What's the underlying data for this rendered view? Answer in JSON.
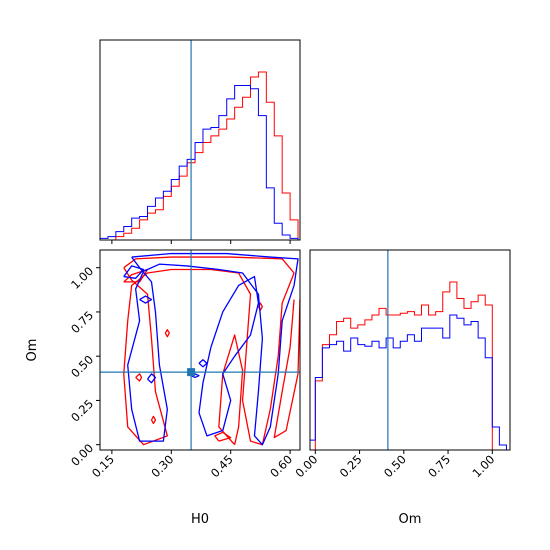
{
  "chart_data": [
    {
      "type": "histogram",
      "panel": "H0 marginal (top-left)",
      "xlim": [
        0.12,
        0.625
      ],
      "truth": 0.35,
      "series": [
        {
          "name": "",
          "color": "#ff0000",
          "edges": [
            0.12,
            0.14,
            0.16,
            0.18,
            0.2,
            0.22,
            0.24,
            0.26,
            0.28,
            0.3,
            0.32,
            0.34,
            0.36,
            0.38,
            0.4,
            0.42,
            0.44,
            0.46,
            0.48,
            0.5,
            0.52,
            0.54,
            0.56,
            0.58,
            0.6,
            0.62
          ],
          "counts": [
            0.0,
            0.0,
            0.02,
            0.04,
            0.07,
            0.12,
            0.16,
            0.18,
            0.26,
            0.32,
            0.38,
            0.46,
            0.52,
            0.58,
            0.62,
            0.66,
            0.72,
            0.79,
            0.85,
            0.97,
            1.0,
            0.82,
            0.62,
            0.28,
            0.12
          ]
        },
        {
          "name": "",
          "color": "#0000ff",
          "edges": [
            0.12,
            0.14,
            0.16,
            0.18,
            0.2,
            0.22,
            0.24,
            0.26,
            0.28,
            0.3,
            0.32,
            0.34,
            0.36,
            0.38,
            0.4,
            0.42,
            0.44,
            0.46,
            0.48,
            0.5,
            0.52,
            0.54,
            0.56,
            0.58,
            0.6,
            0.62
          ],
          "counts": [
            0.01,
            0.02,
            0.05,
            0.08,
            0.13,
            0.14,
            0.2,
            0.25,
            0.29,
            0.36,
            0.44,
            0.48,
            0.58,
            0.66,
            0.67,
            0.74,
            0.84,
            0.92,
            0.92,
            0.9,
            0.74,
            0.31,
            0.1,
            0.03,
            0.01
          ]
        }
      ]
    },
    {
      "type": "histogram",
      "panel": "Om marginal (bottom-right)",
      "xlabel": "Om",
      "xlim": [
        -0.03,
        1.1
      ],
      "xticks": [
        "0.00",
        "0.25",
        "0.50",
        "0.75",
        "1.00"
      ],
      "truth": 0.41,
      "series": [
        {
          "name": "",
          "color": "#ff0000",
          "edges": [
            0.0,
            0.04,
            0.08,
            0.12,
            0.16,
            0.2,
            0.24,
            0.28,
            0.32,
            0.36,
            0.4,
            0.44,
            0.48,
            0.52,
            0.56,
            0.6,
            0.64,
            0.68,
            0.72,
            0.76,
            0.8,
            0.84,
            0.88,
            0.92,
            0.96,
            1.0
          ],
          "counts": [
            0.42,
            0.64,
            0.7,
            0.78,
            0.8,
            0.74,
            0.76,
            0.79,
            0.82,
            0.86,
            0.82,
            0.82,
            0.83,
            0.84,
            0.82,
            0.88,
            0.82,
            0.84,
            0.96,
            1.02,
            0.92,
            0.86,
            0.9,
            0.94,
            0.88
          ]
        },
        {
          "name": "",
          "color": "#0000ff",
          "edges": [
            -0.03,
            0.0,
            0.04,
            0.08,
            0.12,
            0.16,
            0.2,
            0.24,
            0.28,
            0.32,
            0.36,
            0.4,
            0.44,
            0.48,
            0.52,
            0.56,
            0.6,
            0.64,
            0.68,
            0.72,
            0.76,
            0.8,
            0.84,
            0.88,
            0.92,
            0.96,
            1.0,
            1.04,
            1.08,
            1.1
          ],
          "counts": [
            0.06,
            0.44,
            0.62,
            0.64,
            0.66,
            0.6,
            0.68,
            0.64,
            0.63,
            0.66,
            0.62,
            0.68,
            0.62,
            0.66,
            0.7,
            0.66,
            0.74,
            0.74,
            0.74,
            0.68,
            0.82,
            0.8,
            0.76,
            0.78,
            0.68,
            0.56,
            0.14,
            0.03,
            0.0
          ]
        }
      ]
    },
    {
      "type": "contour",
      "panel": "Om vs H0 joint (bottom-left)",
      "xlabel": "H0",
      "ylabel": "Om",
      "xlim": [
        0.12,
        0.625
      ],
      "ylim": [
        -0.03,
        1.1
      ],
      "xticks": [
        "0.15",
        "0.30",
        "0.45",
        "0.60"
      ],
      "yticks": [
        "0.00",
        "0.25",
        "0.50",
        "0.75",
        "1.00"
      ],
      "truth": {
        "x": 0.35,
        "y": 0.41
      },
      "series": [
        {
          "name": "",
          "color": "#ff0000",
          "paths": [
            [
              [
                0.18,
                1.0
              ],
              [
                0.21,
                1.05
              ],
              [
                0.3,
                1.06
              ],
              [
                0.45,
                1.06
              ],
              [
                0.58,
                1.05
              ],
              [
                0.61,
                0.97
              ],
              [
                0.58,
                0.8
              ],
              [
                0.57,
                0.5
              ],
              [
                0.55,
                0.2
              ],
              [
                0.53,
                0.0
              ],
              [
                0.5,
                0.02
              ],
              [
                0.48,
                0.25
              ],
              [
                0.49,
                0.55
              ],
              [
                0.5,
                0.85
              ],
              [
                0.47,
                0.97
              ],
              [
                0.4,
                0.99
              ],
              [
                0.3,
                0.99
              ],
              [
                0.24,
                0.97
              ],
              [
                0.2,
                0.9
              ],
              [
                0.19,
                0.7
              ],
              [
                0.18,
                0.4
              ],
              [
                0.19,
                0.1
              ],
              [
                0.23,
                0.0
              ],
              [
                0.29,
                0.05
              ],
              [
                0.26,
                0.3
              ],
              [
                0.25,
                0.6
              ],
              [
                0.24,
                0.85
              ],
              [
                0.2,
                0.93
              ],
              [
                0.18,
                1.0
              ]
            ],
            [
              [
                0.46,
                0.0
              ],
              [
                0.42,
                0.1
              ],
              [
                0.43,
                0.4
              ],
              [
                0.46,
                0.62
              ],
              [
                0.48,
                0.42
              ],
              [
                0.47,
                0.1
              ],
              [
                0.46,
                0.0
              ]
            ],
            [
              [
                0.61,
                0.82
              ],
              [
                0.6,
                0.55
              ],
              [
                0.58,
                0.3
              ],
              [
                0.56,
                0.04
              ],
              [
                0.59,
                0.08
              ],
              [
                0.62,
                0.4
              ],
              [
                0.625,
                0.82
              ]
            ],
            [
              [
                0.18,
                0.92
              ],
              [
                0.2,
                0.96
              ],
              [
                0.24,
                0.99
              ],
              [
                0.22,
                0.92
              ],
              [
                0.18,
                0.92
              ]
            ],
            [
              [
                0.285,
                0.63
              ],
              [
                0.29,
                0.65
              ],
              [
                0.295,
                0.63
              ],
              [
                0.29,
                0.61
              ],
              [
                0.285,
                0.63
              ]
            ],
            [
              [
                0.25,
                0.14
              ],
              [
                0.255,
                0.16
              ],
              [
                0.26,
                0.14
              ],
              [
                0.255,
                0.12
              ],
              [
                0.25,
                0.14
              ]
            ],
            [
              [
                0.21,
                0.38
              ],
              [
                0.22,
                0.4
              ],
              [
                0.225,
                0.38
              ],
              [
                0.22,
                0.36
              ],
              [
                0.21,
                0.38
              ]
            ],
            [
              [
                0.52,
                0.78
              ],
              [
                0.525,
                0.8
              ],
              [
                0.53,
                0.78
              ],
              [
                0.525,
                0.76
              ],
              [
                0.52,
                0.78
              ]
            ],
            [
              [
                0.42,
                0.02
              ],
              [
                0.41,
                0.05
              ],
              [
                0.43,
                0.07
              ],
              [
                0.45,
                0.04
              ],
              [
                0.42,
                0.02
              ]
            ]
          ]
        },
        {
          "name": "",
          "color": "#0000ff",
          "paths": [
            [
              [
                0.2,
                1.06
              ],
              [
                0.3,
                1.08
              ],
              [
                0.44,
                1.08
              ],
              [
                0.55,
                1.06
              ],
              [
                0.62,
                1.05
              ],
              [
                0.61,
                0.9
              ],
              [
                0.58,
                0.7
              ],
              [
                0.57,
                0.4
              ],
              [
                0.55,
                0.1
              ],
              [
                0.53,
                0.0
              ],
              [
                0.51,
                0.05
              ],
              [
                0.52,
                0.3
              ],
              [
                0.53,
                0.6
              ],
              [
                0.52,
                0.85
              ],
              [
                0.48,
                0.97
              ],
              [
                0.42,
                0.99
              ],
              [
                0.34,
                1.01
              ],
              [
                0.27,
                1.02
              ],
              [
                0.23,
                0.98
              ],
              [
                0.21,
                0.88
              ],
              [
                0.22,
                0.7
              ],
              [
                0.19,
                0.45
              ],
              [
                0.2,
                0.2
              ],
              [
                0.22,
                0.02
              ],
              [
                0.28,
                0.02
              ],
              [
                0.29,
                0.2
              ],
              [
                0.27,
                0.45
              ],
              [
                0.26,
                0.75
              ],
              [
                0.25,
                0.92
              ],
              [
                0.22,
                1.0
              ],
              [
                0.2,
                1.06
              ]
            ],
            [
              [
                0.4,
                0.55
              ],
              [
                0.43,
                0.75
              ],
              [
                0.47,
                0.9
              ],
              [
                0.51,
                0.95
              ],
              [
                0.52,
                0.8
              ],
              [
                0.5,
                0.62
              ],
              [
                0.46,
                0.5
              ],
              [
                0.43,
                0.4
              ],
              [
                0.45,
                0.25
              ],
              [
                0.43,
                0.08
              ],
              [
                0.39,
                0.05
              ],
              [
                0.37,
                0.18
              ],
              [
                0.38,
                0.35
              ],
              [
                0.4,
                0.55
              ]
            ],
            [
              [
                0.18,
                0.95
              ],
              [
                0.2,
                1.01
              ],
              [
                0.23,
                0.99
              ],
              [
                0.21,
                0.94
              ],
              [
                0.18,
                0.95
              ]
            ],
            [
              [
                0.22,
                0.82
              ],
              [
                0.235,
                0.84
              ],
              [
                0.25,
                0.82
              ],
              [
                0.235,
                0.8
              ],
              [
                0.22,
                0.82
              ]
            ],
            [
              [
                0.37,
                0.46
              ],
              [
                0.38,
                0.48
              ],
              [
                0.39,
                0.46
              ],
              [
                0.38,
                0.44
              ],
              [
                0.37,
                0.46
              ]
            ],
            [
              [
                0.35,
                0.39
              ],
              [
                0.36,
                0.4
              ],
              [
                0.37,
                0.39
              ],
              [
                0.36,
                0.38
              ],
              [
                0.35,
                0.39
              ]
            ],
            [
              [
                0.24,
                0.37
              ],
              [
                0.25,
                0.4
              ],
              [
                0.26,
                0.38
              ],
              [
                0.25,
                0.35
              ],
              [
                0.24,
                0.37
              ]
            ]
          ]
        }
      ]
    }
  ],
  "colors": {
    "truth": "#1f77b4",
    "axes": "#000000"
  }
}
